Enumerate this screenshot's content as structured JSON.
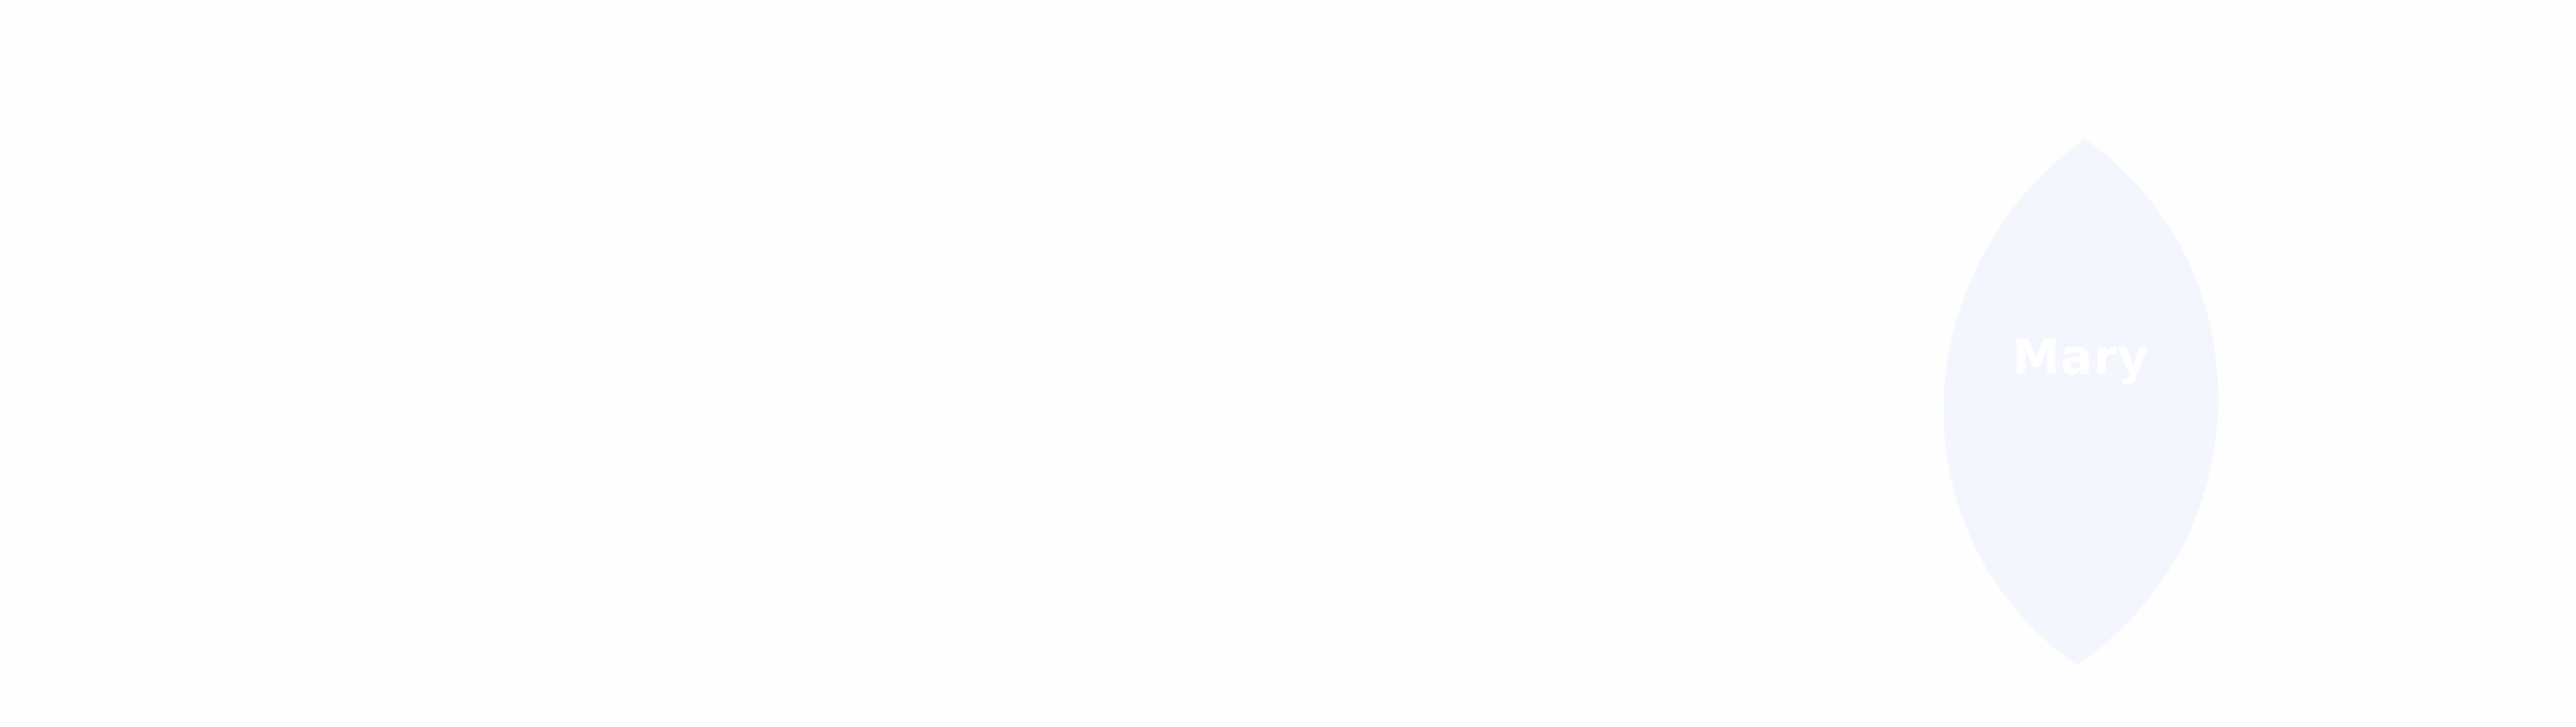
{
  "colors": {
    "background": "#fefefe",
    "intersection_fill": "#f3f6fd",
    "label_text": "#ffffff"
  },
  "diagram": {
    "type": "venn-intersection",
    "intersection_label": "Mary"
  }
}
